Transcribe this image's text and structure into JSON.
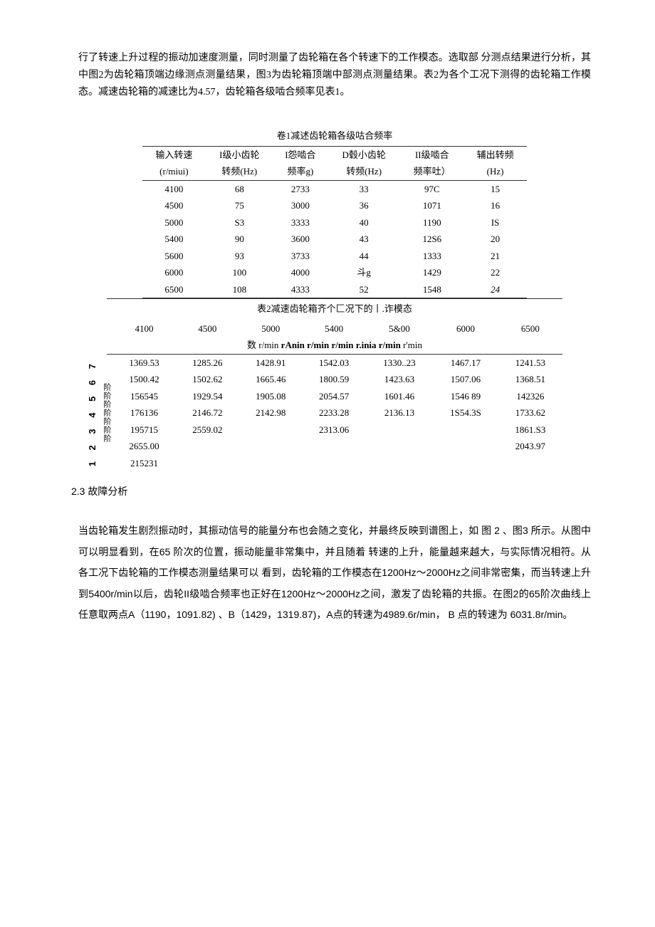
{
  "intro": "行了转速上升过程的振动加速度测量，同时测量了齿轮箱在各个转速下的工作模态。选取部 分测点结果进行分析，其中图2为齿轮箱顶端边缘测点测量结果，图3为齿轮箱顶端中部测点测量结果。表2为各个工况下测得的齿轮箱工作模态。减速齿轮箱的减速比为4.57，齿轮箱各级啮合频率见表1。",
  "table1": {
    "title": "卷1减述齿轮箱各级咕合频率",
    "headers": [
      {
        "l1": "输入转速",
        "l2": "(r/miui)"
      },
      {
        "l1": "I级小齿轮",
        "l2": "转频(Hz)"
      },
      {
        "l1": "I怨啮合",
        "l2": "频率g)"
      },
      {
        "l1": "D毂小齿轮",
        "l2": "转频(Hz)"
      },
      {
        "l1": "II级啮合",
        "l2": "频率吐）"
      },
      {
        "l1": "辅出转频",
        "l2": "(Hz)"
      }
    ],
    "rows": [
      [
        "4100",
        "68",
        "2733",
        "33",
        "97C",
        "15"
      ],
      [
        "4500",
        "75",
        "3000",
        "36",
        "1071",
        "16"
      ],
      [
        "5000",
        "S3",
        "3333",
        "40",
        "1190",
        "IS"
      ],
      [
        "5400",
        "90",
        "3600",
        "43",
        "12S6",
        "20"
      ],
      [
        "5600",
        "93",
        "3733",
        "44",
        "1333",
        "21"
      ],
      [
        "6000",
        "100",
        "4000",
        "斗g",
        "1429",
        "22"
      ],
      [
        "6500",
        "108",
        "4333",
        "52",
        "1548",
        "24"
      ]
    ],
    "last_col_italics": [
      false,
      false,
      false,
      false,
      false,
      false,
      true
    ]
  },
  "table2": {
    "title": "表2减速齿轮箱齐个匚况下的丨.诈模态",
    "col_heads": [
      "4100",
      "4500",
      "5000",
      "5400",
      "5&00",
      "6000",
      "6500"
    ],
    "unit_line_prefix": "数 r/min ",
    "unit_line_bold": "rAnin r/min r/min r.inia r/min",
    "unit_line_suffix": " r'min",
    "row_nums": "1 2 3 4 5 6 7",
    "row_cjk": "阶阶阶阶阶阶阶",
    "rows": [
      [
        "1369.53",
        "1285.26",
        "1428.91",
        "1542.03",
        "1330..23",
        "1467.17",
        "1241.53"
      ],
      [
        "1500.42",
        "1502.62",
        "1665.46",
        "1800.59",
        "1423.63",
        "1507.06",
        "1368.51"
      ],
      [
        "156545",
        "1929.54",
        "1905.08",
        "2054.57",
        "1601.46",
        "1546 89",
        "142326"
      ],
      [
        "176136",
        "2146.72",
        "2142.98",
        "2233.28",
        "2136.13",
        "1S54.3S",
        "1733.62"
      ],
      [
        "195715",
        "2559.02",
        "",
        "2313.06",
        "",
        "",
        "1861.S3"
      ],
      [
        "2655.00",
        "",
        "",
        "",
        "",
        "",
        "2043.97"
      ],
      [
        "215231",
        "",
        "",
        "",
        "",
        "",
        ""
      ]
    ]
  },
  "section_head": "2.3 故障分析",
  "analysis": "当齿轮箱发生剧烈振动时，其振动信号的能量分布也会随之变化，并最终反映到谱图上，如 图 2 、图3 所示。从图中可以明显看到，在65 阶次的位置，振动能量非常集中，并且随着 转速的上升，能量越来越大，与实际情况相符。从各工况下齿轮箱的工作模态测量结果可以 看到，齿轮箱的工作模态在1200Hz〜2000Hz之间非常密集，而当转速上升到5400r/min以后，齿轮II级啮合频率也正好在1200Hz〜2000Hz之间，激发了齿轮箱的共振。在图2的65阶次曲线上任意取两点A（1190，1091.82) 、B（1429，1319.87)，A点的转速为4989.6r/min， B 点的转速为 6031.8r/min。"
}
